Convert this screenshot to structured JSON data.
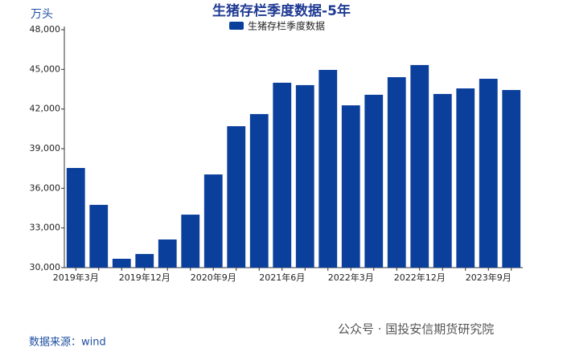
{
  "chart_data": {
    "type": "bar",
    "title": "生猪存栏季度数据-5年",
    "y_label": "万头",
    "categories": [
      "2019年3月",
      null,
      null,
      "2019年12月",
      null,
      null,
      "2020年9月",
      null,
      null,
      "2021年6月",
      null,
      null,
      "2022年3月",
      null,
      null,
      "2022年12月",
      null,
      null,
      "2023年9月",
      null
    ],
    "series": [
      {
        "name": "生猪存栏季度数据",
        "color": "#0b3f9c",
        "values": [
          37540,
          34750,
          30670,
          31030,
          32130,
          34010,
          37050,
          40700,
          41620,
          43990,
          43810,
          44960,
          42280,
          43080,
          44410,
          45330,
          43140,
          43560,
          44290,
          43440
        ]
      }
    ],
    "ylim": [
      30000,
      48000
    ],
    "yticks": [
      {
        "value": 30000,
        "label": "30,000"
      },
      {
        "value": 33000,
        "label": "33,000"
      },
      {
        "value": 36000,
        "label": "36,000"
      },
      {
        "value": 39000,
        "label": "39,000"
      },
      {
        "value": 42000,
        "label": "42,000"
      },
      {
        "value": 45000,
        "label": "45,000"
      },
      {
        "value": 48000,
        "label": "48,000"
      }
    ],
    "source": "数据来源：wind",
    "watermark": "公众号 · 国投安信期货研究院"
  }
}
